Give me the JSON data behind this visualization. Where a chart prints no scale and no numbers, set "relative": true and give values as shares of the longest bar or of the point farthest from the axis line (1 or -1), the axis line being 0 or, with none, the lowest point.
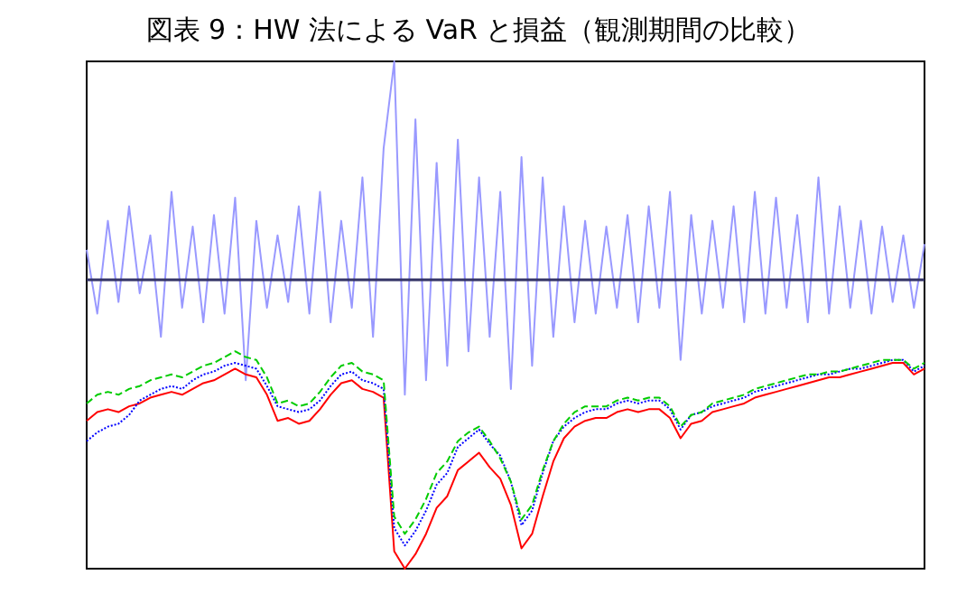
{
  "chart_data": {
    "type": "line",
    "title": "図表 9：HW 法による VaR と損益（観測期間の比較）",
    "relative": true,
    "marker": "none",
    "ref_lines": [
      {
        "axis": "y",
        "value": 0,
        "color": "#333366"
      }
    ],
    "categories": [
      null,
      null,
      null,
      null,
      null,
      null,
      null,
      null,
      null,
      null,
      null,
      null,
      null,
      null,
      null,
      null,
      null,
      null,
      null,
      null,
      null,
      null,
      null,
      null,
      null,
      null,
      null,
      null,
      null,
      null,
      null,
      null,
      null,
      null,
      null,
      null,
      null,
      null,
      null,
      null,
      null,
      null,
      null,
      null,
      null,
      null,
      null,
      null,
      null,
      null,
      null,
      null,
      null,
      null,
      null,
      null,
      null,
      null,
      null,
      null,
      null,
      null,
      null,
      null,
      null,
      null,
      null,
      null,
      null,
      null,
      null,
      null,
      null,
      null,
      null,
      null,
      null,
      null,
      null,
      null
    ],
    "series": [
      {
        "color": "#9999ff",
        "line_style": "solid",
        "values": [
          0.1,
          -0.12,
          0.2,
          -0.08,
          0.25,
          -0.05,
          0.15,
          -0.2,
          0.3,
          -0.1,
          0.18,
          -0.15,
          0.22,
          -0.12,
          0.28,
          -0.35,
          0.2,
          -0.1,
          0.15,
          -0.08,
          0.25,
          -0.12,
          0.3,
          -0.15,
          0.2,
          -0.1,
          0.35,
          -0.2,
          0.45,
          0.75,
          -0.4,
          0.55,
          -0.35,
          0.4,
          -0.3,
          0.48,
          -0.25,
          0.35,
          -0.2,
          0.3,
          -0.38,
          0.42,
          -0.3,
          0.35,
          -0.2,
          0.25,
          -0.15,
          0.2,
          -0.12,
          0.18,
          -0.1,
          0.22,
          -0.15,
          0.25,
          -0.1,
          0.3,
          -0.28,
          0.22,
          -0.12,
          0.2,
          -0.1,
          0.25,
          -0.15,
          0.3,
          -0.12,
          0.28,
          -0.1,
          0.22,
          -0.15,
          0.35,
          -0.12,
          0.25,
          -0.1,
          0.2,
          -0.12,
          0.18,
          -0.08,
          0.15,
          -0.1,
          0.12
        ]
      },
      {
        "color": "#ff0000",
        "line_style": "solid",
        "values": [
          -0.49,
          -0.46,
          -0.45,
          -0.46,
          -0.44,
          -0.43,
          -0.41,
          -0.4,
          -0.39,
          -0.4,
          -0.38,
          -0.36,
          -0.35,
          -0.33,
          -0.31,
          -0.33,
          -0.34,
          -0.4,
          -0.49,
          -0.48,
          -0.5,
          -0.49,
          -0.45,
          -0.4,
          -0.36,
          -0.35,
          -0.38,
          -0.39,
          -0.41,
          -0.94,
          -1.0,
          -0.95,
          -0.88,
          -0.79,
          -0.75,
          -0.66,
          -0.63,
          -0.6,
          -0.65,
          -0.69,
          -0.78,
          -0.93,
          -0.88,
          -0.75,
          -0.63,
          -0.55,
          -0.51,
          -0.49,
          -0.48,
          -0.48,
          -0.46,
          -0.45,
          -0.46,
          -0.45,
          -0.45,
          -0.48,
          -0.55,
          -0.5,
          -0.49,
          -0.46,
          -0.45,
          -0.44,
          -0.43,
          -0.41,
          -0.4,
          -0.39,
          -0.38,
          -0.37,
          -0.36,
          -0.35,
          -0.34,
          -0.34,
          -0.33,
          -0.32,
          -0.31,
          -0.3,
          -0.29,
          -0.29,
          -0.33,
          -0.31
        ]
      },
      {
        "color": "#0000ff",
        "line_style": "dotted",
        "values": [
          -0.56,
          -0.53,
          -0.51,
          -0.5,
          -0.47,
          -0.42,
          -0.4,
          -0.38,
          -0.37,
          -0.38,
          -0.35,
          -0.33,
          -0.32,
          -0.3,
          -0.29,
          -0.3,
          -0.31,
          -0.37,
          -0.44,
          -0.45,
          -0.46,
          -0.45,
          -0.42,
          -0.37,
          -0.33,
          -0.32,
          -0.35,
          -0.36,
          -0.38,
          -0.86,
          -0.92,
          -0.87,
          -0.8,
          -0.71,
          -0.67,
          -0.58,
          -0.55,
          -0.52,
          -0.57,
          -0.61,
          -0.7,
          -0.85,
          -0.8,
          -0.67,
          -0.56,
          -0.51,
          -0.48,
          -0.46,
          -0.45,
          -0.45,
          -0.43,
          -0.42,
          -0.43,
          -0.42,
          -0.42,
          -0.45,
          -0.52,
          -0.47,
          -0.46,
          -0.44,
          -0.43,
          -0.42,
          -0.41,
          -0.39,
          -0.38,
          -0.37,
          -0.36,
          -0.35,
          -0.34,
          -0.33,
          -0.33,
          -0.32,
          -0.31,
          -0.31,
          -0.3,
          -0.29,
          -0.28,
          -0.28,
          -0.32,
          -0.3
        ]
      },
      {
        "color": "#00cc00",
        "line_style": "dashed",
        "values": [
          -0.43,
          -0.4,
          -0.39,
          -0.4,
          -0.38,
          -0.37,
          -0.35,
          -0.34,
          -0.33,
          -0.34,
          -0.32,
          -0.3,
          -0.29,
          -0.27,
          -0.25,
          -0.27,
          -0.28,
          -0.34,
          -0.43,
          -0.42,
          -0.44,
          -0.43,
          -0.39,
          -0.34,
          -0.3,
          -0.29,
          -0.32,
          -0.33,
          -0.35,
          -0.82,
          -0.88,
          -0.83,
          -0.76,
          -0.67,
          -0.63,
          -0.56,
          -0.53,
          -0.51,
          -0.56,
          -0.62,
          -0.7,
          -0.83,
          -0.78,
          -0.66,
          -0.56,
          -0.5,
          -0.46,
          -0.44,
          -0.44,
          -0.44,
          -0.42,
          -0.41,
          -0.42,
          -0.41,
          -0.41,
          -0.44,
          -0.51,
          -0.47,
          -0.46,
          -0.43,
          -0.42,
          -0.41,
          -0.4,
          -0.38,
          -0.37,
          -0.36,
          -0.35,
          -0.34,
          -0.33,
          -0.33,
          -0.32,
          -0.32,
          -0.31,
          -0.3,
          -0.29,
          -0.28,
          -0.28,
          -0.28,
          -0.31,
          -0.29
        ]
      }
    ]
  }
}
